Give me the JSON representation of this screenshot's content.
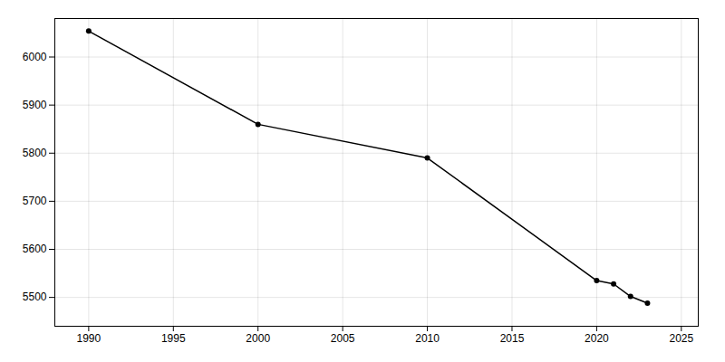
{
  "chart_data": {
    "type": "line",
    "x": [
      1990,
      2000,
      2010,
      2020,
      2021,
      2022,
      2023
    ],
    "values": [
      6054,
      5860,
      5790,
      5535,
      5528,
      5502,
      5488
    ],
    "marker": "circle",
    "xlim": [
      1988,
      2026
    ],
    "ylim": [
      5440,
      6080
    ],
    "xticks": [
      1990,
      1995,
      2000,
      2005,
      2010,
      2015,
      2020,
      2025
    ],
    "yticks": [
      5500,
      5600,
      5700,
      5800,
      5900,
      6000
    ],
    "grid": true
  }
}
